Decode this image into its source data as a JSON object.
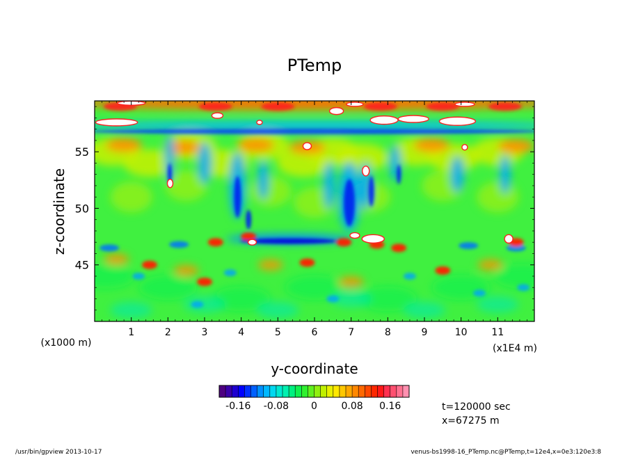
{
  "chart_data": {
    "type": "heatmap",
    "title": "PTemp",
    "xlabel": "y-coordinate",
    "ylabel": "z-coordinate",
    "x_tick_labels": [
      "1",
      "2",
      "3",
      "4",
      "5",
      "6",
      "7",
      "8",
      "9",
      "10",
      "11"
    ],
    "x_ticks": [
      1,
      2,
      3,
      4,
      5,
      6,
      7,
      8,
      9,
      10,
      11
    ],
    "xlim": [
      0,
      12
    ],
    "x_unit_label": "(x1E4 m)",
    "y_tick_labels": [
      "45",
      "50",
      "55"
    ],
    "y_ticks": [
      45,
      50,
      55
    ],
    "ylim": [
      40,
      59.5
    ],
    "y_unit_label": "(x1000 m)",
    "colorbar": {
      "range": [
        -0.2,
        0.2
      ],
      "tick_values": [
        -0.16,
        -0.08,
        0,
        0.08,
        0.16
      ],
      "tick_labels": [
        "-0.16",
        "-0.08",
        "0",
        "0.08",
        "0.16"
      ],
      "colors": [
        "#4d0080",
        "#3a00a8",
        "#1e00d0",
        "#0000ff",
        "#0030ff",
        "#0060ff",
        "#0090ff",
        "#00b8ff",
        "#00d8f0",
        "#00e8d0",
        "#00f0b0",
        "#00f080",
        "#10f050",
        "#30f030",
        "#60f020",
        "#90f010",
        "#c0f000",
        "#e8f000",
        "#ffe800",
        "#ffc800",
        "#ffa800",
        "#ff8800",
        "#ff6800",
        "#ff4800",
        "#ff2800",
        "#ff1818",
        "#ff3050",
        "#ff5070",
        "#ff7090",
        "#ff90b0"
      ]
    },
    "annotations": {
      "time": "t=120000 sec",
      "position": "x=67275 m"
    }
  },
  "footer": {
    "left": "/usr/bin/gpview  2013-10-17",
    "right": "venus-bs1998-16_PTemp.nc@PTemp,t=12e4,x=0e3:120e3:8"
  }
}
